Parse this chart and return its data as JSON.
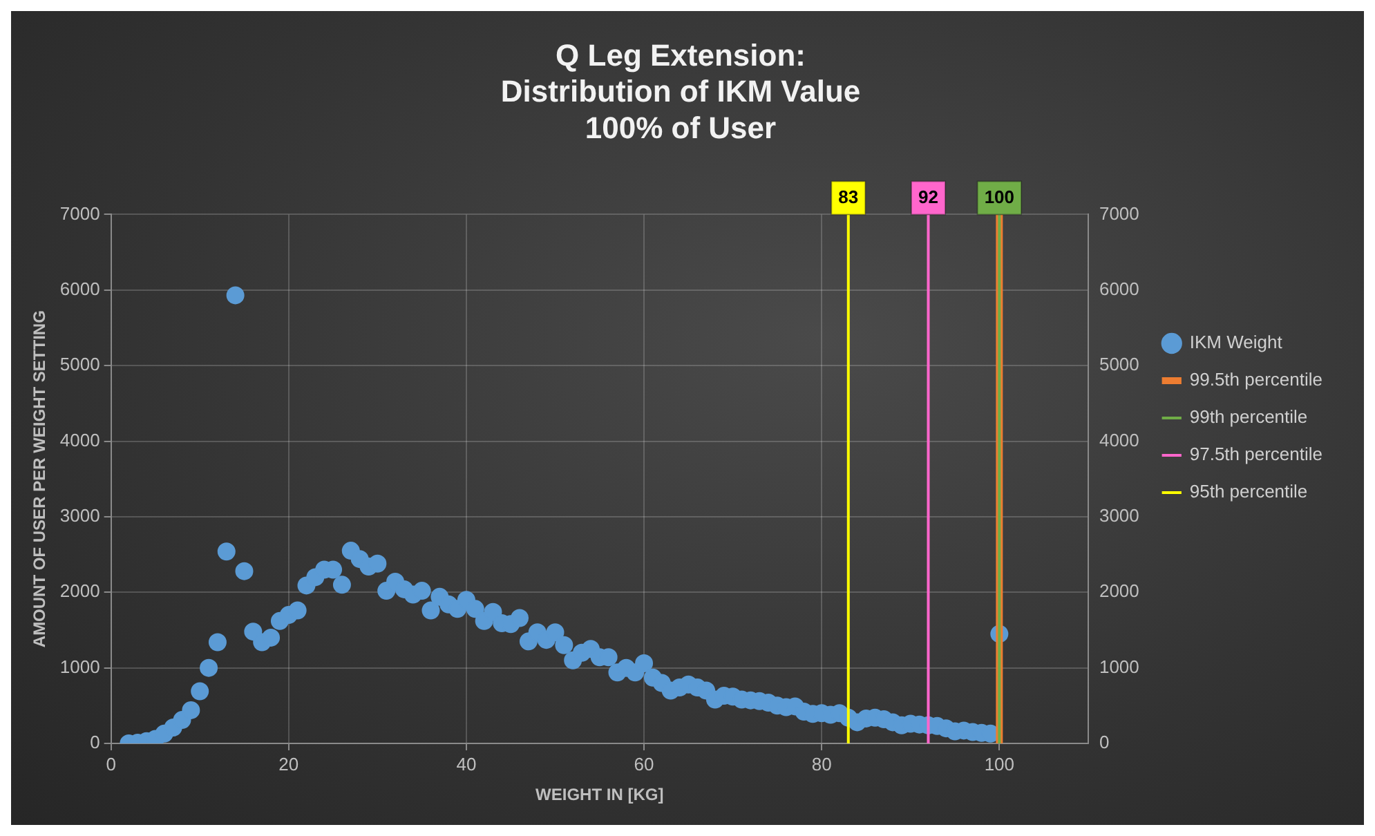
{
  "chart_data": {
    "type": "scatter",
    "title": "Q Leg Extension:\nDistribution of IKM Value\n100% of User",
    "xlabel": "WEIGHT IN [KG]",
    "ylabel": "AMOUNT OF USER PER WEIGHT SETTING",
    "xlim": [
      0,
      110
    ],
    "xticks": [
      0,
      20,
      40,
      60,
      80,
      100
    ],
    "ylim": [
      0,
      7000
    ],
    "yticks": [
      0,
      1000,
      2000,
      3000,
      4000,
      5000,
      6000,
      7000
    ],
    "y2lim": [
      0,
      7000
    ],
    "y2ticks": [
      0,
      1000,
      2000,
      3000,
      4000,
      5000,
      6000,
      7000
    ],
    "grid": true,
    "legend": "right",
    "line_style": "solid",
    "series": [
      {
        "name": "IKM Weight",
        "type": "scatter",
        "marker": "circle",
        "color": "#5b9bd5",
        "x": [
          2,
          3,
          4,
          5,
          6,
          7,
          8,
          9,
          10,
          11,
          12,
          13,
          14,
          15,
          16,
          17,
          18,
          19,
          20,
          21,
          22,
          23,
          24,
          25,
          26,
          27,
          28,
          29,
          30,
          31,
          32,
          33,
          34,
          35,
          36,
          37,
          38,
          39,
          40,
          41,
          42,
          43,
          44,
          45,
          46,
          47,
          48,
          49,
          50,
          51,
          52,
          53,
          54,
          55,
          56,
          57,
          58,
          59,
          60,
          61,
          62,
          63,
          64,
          65,
          66,
          67,
          68,
          69,
          70,
          71,
          72,
          73,
          74,
          75,
          76,
          77,
          78,
          79,
          80,
          81,
          82,
          83,
          84,
          85,
          86,
          87,
          88,
          89,
          90,
          91,
          92,
          93,
          94,
          95,
          96,
          97,
          98,
          99,
          100
        ],
        "values": [
          0,
          10,
          30,
          60,
          130,
          210,
          310,
          440,
          690,
          1000,
          1340,
          2540,
          5930,
          2280,
          1480,
          1340,
          1400,
          1620,
          1700,
          1760,
          2090,
          2200,
          2300,
          2300,
          2100,
          2550,
          2440,
          2340,
          2380,
          2020,
          2140,
          2040,
          1970,
          2020,
          1760,
          1940,
          1840,
          1780,
          1900,
          1780,
          1620,
          1740,
          1590,
          1580,
          1660,
          1350,
          1470,
          1370,
          1470,
          1300,
          1100,
          1200,
          1250,
          1140,
          1140,
          940,
          1000,
          940,
          1060,
          870,
          800,
          700,
          740,
          780,
          740,
          700,
          580,
          630,
          620,
          580,
          570,
          560,
          540,
          500,
          480,
          490,
          420,
          390,
          400,
          380,
          400,
          340,
          280,
          330,
          340,
          320,
          280,
          240,
          260,
          250,
          240,
          230,
          200,
          160,
          170,
          150,
          140,
          130,
          1450
        ]
      },
      {
        "name": "99.5th percentile",
        "type": "line",
        "marker": "none",
        "color": "#ed7d31",
        "x": [
          100,
          100
        ],
        "values": [
          0,
          7000
        ]
      },
      {
        "name": "99th percentile",
        "type": "line",
        "marker": "none",
        "color": "#70ad47",
        "x": [
          100,
          100
        ],
        "values": [
          0,
          7000
        ]
      },
      {
        "name": "97.5th percentile",
        "type": "line",
        "marker": "none",
        "color": "#ff66cc",
        "x": [
          92,
          92
        ],
        "values": [
          0,
          7000
        ]
      },
      {
        "name": "95th percentile",
        "type": "line",
        "marker": "none",
        "color": "#ffff00",
        "x": [
          83,
          83
        ],
        "values": [
          0,
          7000
        ]
      }
    ],
    "annotations": [
      {
        "text": "83",
        "x": 83,
        "y": 7000
      },
      {
        "text": "92",
        "x": 92,
        "y": 7000
      },
      {
        "text": "100",
        "x": 100,
        "y": 7000
      }
    ]
  }
}
